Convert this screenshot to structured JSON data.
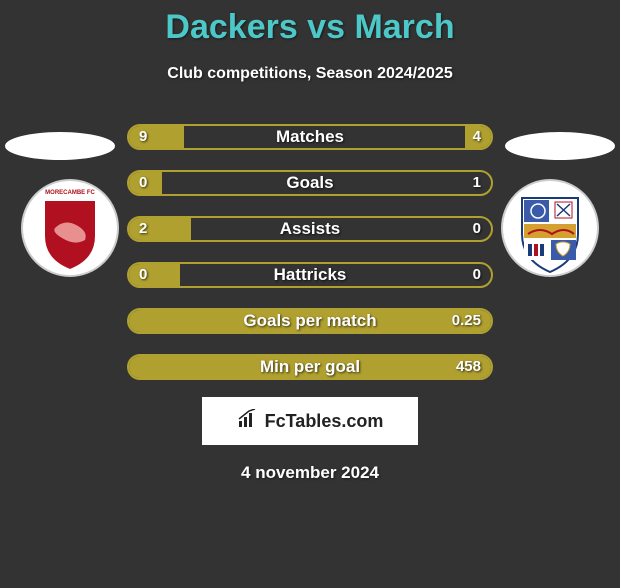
{
  "header": {
    "title": "Dackers vs March",
    "subtitle": "Club competitions, Season 2024/2025"
  },
  "colors": {
    "background": "#333333",
    "title": "#4dc8c8",
    "text": "#ffffff",
    "bar_border": "#b0a030",
    "bar_fill": "#b0a030",
    "brand_bg": "#ffffff",
    "brand_text": "#222222"
  },
  "bars": [
    {
      "label": "Matches",
      "left": "9",
      "right": "4",
      "left_pct": 30,
      "right_pct": 14
    },
    {
      "label": "Goals",
      "left": "0",
      "right": "1",
      "left_pct": 18,
      "right_pct": 0
    },
    {
      "label": "Assists",
      "left": "2",
      "right": "0",
      "left_pct": 34,
      "right_pct": 0
    },
    {
      "label": "Hattricks",
      "left": "0",
      "right": "0",
      "left_pct": 28,
      "right_pct": 0
    },
    {
      "label": "Goals per match",
      "left": "",
      "right": "0.25",
      "left_pct": 100,
      "right_pct": 0
    },
    {
      "label": "Min per goal",
      "left": "",
      "right": "458",
      "left_pct": 100,
      "right_pct": 0
    }
  ],
  "brand": {
    "text": "FcTables.com"
  },
  "date": "4 november 2024",
  "crest_left": {
    "name": "morecambe-crest",
    "bg": "#ffffff",
    "shield": "#b01020",
    "border": "#cccccc"
  },
  "crest_right": {
    "name": "away-crest",
    "bg": "#ffffff"
  }
}
